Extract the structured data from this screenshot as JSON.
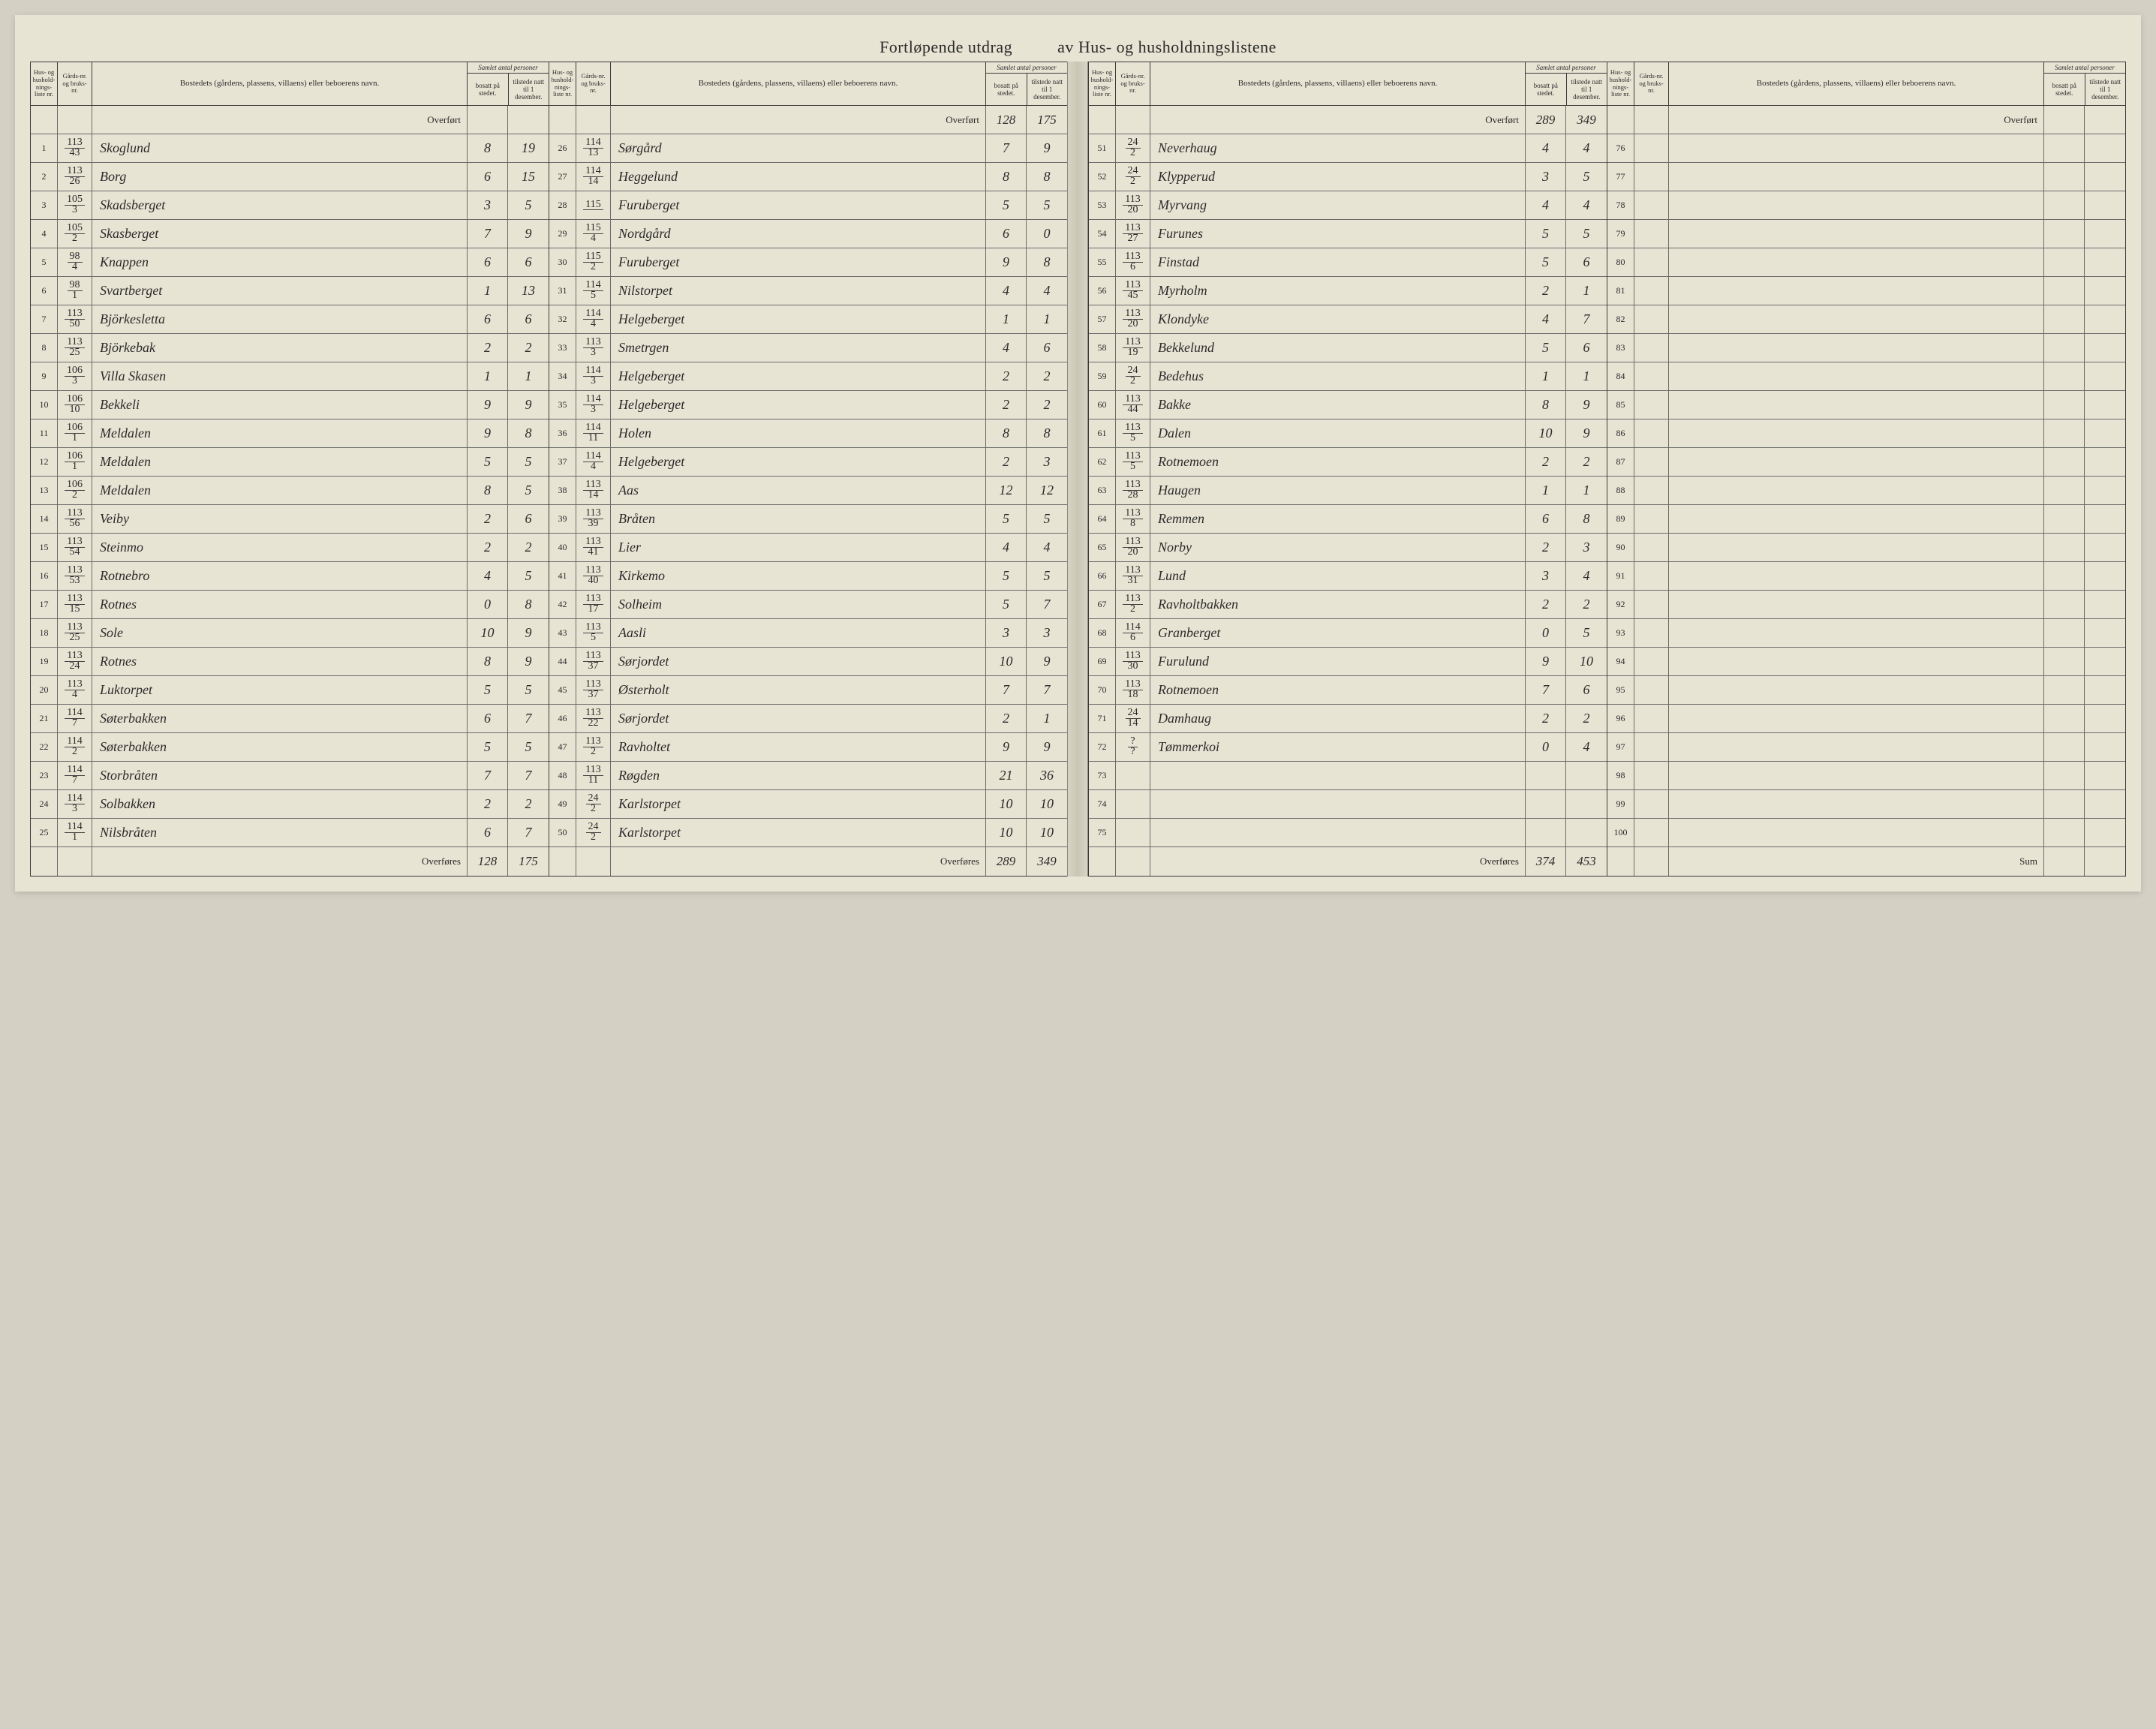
{
  "title_left": "Fortløpende utdrag",
  "title_right": "av Hus- og husholdningslistene",
  "head": {
    "nr": "Hus- og hushold-nings-liste nr.",
    "gnr": "Gårds-nr. og bruks-nr.",
    "bosted": "Bostedets (gårdens, plassens, villaens) eller beboerens navn.",
    "samlet": "Samlet antal personer",
    "bosatt": "bosatt på stedet.",
    "tilstede": "tilstede natt til 1 desember."
  },
  "overfort_label": "Overført",
  "overfores_label": "Overføres",
  "sum_label": "Sum",
  "panels": [
    {
      "overfort": {
        "bosatt": "",
        "tilstede": ""
      },
      "rows": [
        {
          "nr": "1",
          "g": "113",
          "b": "43",
          "navn": "Skoglund",
          "bo": "8",
          "ti": "19"
        },
        {
          "nr": "2",
          "g": "113",
          "b": "26",
          "navn": "Borg",
          "bo": "6",
          "ti": "15"
        },
        {
          "nr": "3",
          "g": "105",
          "b": "3",
          "navn": "Skadsberget",
          "bo": "3",
          "ti": "5"
        },
        {
          "nr": "4",
          "g": "105",
          "b": "2",
          "navn": "Skasberget",
          "bo": "7",
          "ti": "9"
        },
        {
          "nr": "5",
          "g": "98",
          "b": "4",
          "navn": "Knappen",
          "bo": "6",
          "ti": "6"
        },
        {
          "nr": "6",
          "g": "98",
          "b": "1",
          "navn": "Svartberget",
          "bo": "1",
          "ti": "13"
        },
        {
          "nr": "7",
          "g": "113",
          "b": "50",
          "navn": "Björkesletta",
          "bo": "6",
          "ti": "6"
        },
        {
          "nr": "8",
          "g": "113",
          "b": "25",
          "navn": "Björkebak",
          "bo": "2",
          "ti": "2"
        },
        {
          "nr": "9",
          "g": "106",
          "b": "3",
          "navn": "Villa Skasen",
          "bo": "1",
          "ti": "1"
        },
        {
          "nr": "10",
          "g": "106",
          "b": "10",
          "navn": "Bekkeli",
          "bo": "9",
          "ti": "9"
        },
        {
          "nr": "11",
          "g": "106",
          "b": "1",
          "navn": "Meldalen",
          "bo": "9",
          "ti": "8"
        },
        {
          "nr": "12",
          "g": "106",
          "b": "1",
          "navn": "Meldalen",
          "bo": "5",
          "ti": "5"
        },
        {
          "nr": "13",
          "g": "106",
          "b": "2",
          "navn": "Meldalen",
          "bo": "8",
          "ti": "5"
        },
        {
          "nr": "14",
          "g": "113",
          "b": "56",
          "navn": "Veiby",
          "bo": "2",
          "ti": "6"
        },
        {
          "nr": "15",
          "g": "113",
          "b": "54",
          "navn": "Steinmo",
          "bo": "2",
          "ti": "2"
        },
        {
          "nr": "16",
          "g": "113",
          "b": "53",
          "navn": "Rotnebro",
          "bo": "4",
          "ti": "5"
        },
        {
          "nr": "17",
          "g": "113",
          "b": "15",
          "navn": "Rotnes",
          "bo": "0",
          "ti": "8"
        },
        {
          "nr": "18",
          "g": "113",
          "b": "25",
          "navn": "Sole",
          "bo": "10",
          "ti": "9"
        },
        {
          "nr": "19",
          "g": "113",
          "b": "24",
          "navn": "Rotnes",
          "bo": "8",
          "ti": "9"
        },
        {
          "nr": "20",
          "g": "113",
          "b": "4",
          "navn": "Luktorpet",
          "bo": "5",
          "ti": "5"
        },
        {
          "nr": "21",
          "g": "114",
          "b": "7",
          "navn": "Søterbakken",
          "bo": "6",
          "ti": "7"
        },
        {
          "nr": "22",
          "g": "114",
          "b": "2",
          "navn": "Søterbakken",
          "bo": "5",
          "ti": "5"
        },
        {
          "nr": "23",
          "g": "114",
          "b": "7",
          "navn": "Storbråten",
          "bo": "7",
          "ti": "7"
        },
        {
          "nr": "24",
          "g": "114",
          "b": "3",
          "navn": "Solbakken",
          "bo": "2",
          "ti": "2"
        },
        {
          "nr": "25",
          "g": "114",
          "b": "1",
          "navn": "Nilsbråten",
          "bo": "6",
          "ti": "7"
        }
      ],
      "overfores": {
        "bosatt": "128",
        "tilstede": "175"
      }
    },
    {
      "overfort": {
        "bosatt": "128",
        "tilstede": "175"
      },
      "rows": [
        {
          "nr": "26",
          "g": "114",
          "b": "13",
          "navn": "Sørgård",
          "bo": "7",
          "ti": "9"
        },
        {
          "nr": "27",
          "g": "114",
          "b": "14",
          "navn": "Heggelund",
          "bo": "8",
          "ti": "8"
        },
        {
          "nr": "28",
          "g": "115",
          "b": "",
          "navn": "Furuberget",
          "bo": "5",
          "ti": "5"
        },
        {
          "nr": "29",
          "g": "115",
          "b": "4",
          "navn": "Nordgård",
          "bo": "6",
          "ti": "0"
        },
        {
          "nr": "30",
          "g": "115",
          "b": "2",
          "navn": "Furuberget",
          "bo": "9",
          "ti": "8"
        },
        {
          "nr": "31",
          "g": "114",
          "b": "5",
          "navn": "Nilstorpet",
          "bo": "4",
          "ti": "4"
        },
        {
          "nr": "32",
          "g": "114",
          "b": "4",
          "navn": "Helgeberget",
          "bo": "1",
          "ti": "1"
        },
        {
          "nr": "33",
          "g": "113",
          "b": "3",
          "navn": "Smetrgen",
          "bo": "4",
          "ti": "6"
        },
        {
          "nr": "34",
          "g": "114",
          "b": "3",
          "navn": "Helgeberget",
          "bo": "2",
          "ti": "2"
        },
        {
          "nr": "35",
          "g": "114",
          "b": "3",
          "navn": "Helgeberget",
          "bo": "2",
          "ti": "2"
        },
        {
          "nr": "36",
          "g": "114",
          "b": "11",
          "navn": "Holen",
          "bo": "8",
          "ti": "8"
        },
        {
          "nr": "37",
          "g": "114",
          "b": "4",
          "navn": "Helgeberget",
          "bo": "2",
          "ti": "3"
        },
        {
          "nr": "38",
          "g": "113",
          "b": "14",
          "navn": "Aas",
          "bo": "12",
          "ti": "12"
        },
        {
          "nr": "39",
          "g": "113",
          "b": "39",
          "navn": "Bråten",
          "bo": "5",
          "ti": "5"
        },
        {
          "nr": "40",
          "g": "113",
          "b": "41",
          "navn": "Lier",
          "bo": "4",
          "ti": "4"
        },
        {
          "nr": "41",
          "g": "113",
          "b": "40",
          "navn": "Kirkemo",
          "bo": "5",
          "ti": "5"
        },
        {
          "nr": "42",
          "g": "113",
          "b": "17",
          "navn": "Solheim",
          "bo": "5",
          "ti": "7"
        },
        {
          "nr": "43",
          "g": "113",
          "b": "5",
          "navn": "Aasli",
          "bo": "3",
          "ti": "3"
        },
        {
          "nr": "44",
          "g": "113",
          "b": "37",
          "navn": "Sørjordet",
          "bo": "10",
          "ti": "9"
        },
        {
          "nr": "45",
          "g": "113",
          "b": "37",
          "navn": "Østerholt",
          "bo": "7",
          "ti": "7"
        },
        {
          "nr": "46",
          "g": "113",
          "b": "22",
          "navn": "Sørjordet",
          "bo": "2",
          "ti": "1"
        },
        {
          "nr": "47",
          "g": "113",
          "b": "2",
          "navn": "Ravholtet",
          "bo": "9",
          "ti": "9"
        },
        {
          "nr": "48",
          "g": "113",
          "b": "11",
          "navn": "Røgden",
          "bo": "21",
          "ti": "36"
        },
        {
          "nr": "49",
          "g": "24",
          "b": "2",
          "navn": "Karlstorpet",
          "bo": "10",
          "ti": "10"
        },
        {
          "nr": "50",
          "g": "24",
          "b": "2",
          "navn": "Karlstorpet",
          "bo": "10",
          "ti": "10"
        }
      ],
      "overfores": {
        "bosatt": "289",
        "tilstede": "349"
      }
    },
    {
      "overfort": {
        "bosatt": "289",
        "tilstede": "349"
      },
      "rows": [
        {
          "nr": "51",
          "g": "24",
          "b": "2",
          "navn": "Neverhaug",
          "bo": "4",
          "ti": "4"
        },
        {
          "nr": "52",
          "g": "24",
          "b": "2",
          "navn": "Klypperud",
          "bo": "3",
          "ti": "5"
        },
        {
          "nr": "53",
          "g": "113",
          "b": "20",
          "navn": "Myrvang",
          "bo": "4",
          "ti": "4"
        },
        {
          "nr": "54",
          "g": "113",
          "b": "27",
          "navn": "Furunes",
          "bo": "5",
          "ti": "5"
        },
        {
          "nr": "55",
          "g": "113",
          "b": "6",
          "navn": "Finstad",
          "bo": "5",
          "ti": "6"
        },
        {
          "nr": "56",
          "g": "113",
          "b": "45",
          "navn": "Myrholm",
          "bo": "2",
          "ti": "1"
        },
        {
          "nr": "57",
          "g": "113",
          "b": "20",
          "navn": "Klondyke",
          "bo": "4",
          "ti": "7"
        },
        {
          "nr": "58",
          "g": "113",
          "b": "19",
          "navn": "Bekkelund",
          "bo": "5",
          "ti": "6"
        },
        {
          "nr": "59",
          "g": "24",
          "b": "2",
          "navn": "Bedehus",
          "bo": "1",
          "ti": "1"
        },
        {
          "nr": "60",
          "g": "113",
          "b": "44",
          "navn": "Bakke",
          "bo": "8",
          "ti": "9"
        },
        {
          "nr": "61",
          "g": "113",
          "b": "5",
          "navn": "Dalen",
          "bo": "10",
          "ti": "9"
        },
        {
          "nr": "62",
          "g": "113",
          "b": "5",
          "navn": "Rotnemoen",
          "bo": "2",
          "ti": "2"
        },
        {
          "nr": "63",
          "g": "113",
          "b": "28",
          "navn": "Haugen",
          "bo": "1",
          "ti": "1"
        },
        {
          "nr": "64",
          "g": "113",
          "b": "8",
          "navn": "Remmen",
          "bo": "6",
          "ti": "8"
        },
        {
          "nr": "65",
          "g": "113",
          "b": "20",
          "navn": "Norby",
          "bo": "2",
          "ti": "3"
        },
        {
          "nr": "66",
          "g": "113",
          "b": "31",
          "navn": "Lund",
          "bo": "3",
          "ti": "4"
        },
        {
          "nr": "67",
          "g": "113",
          "b": "2",
          "navn": "Ravholtbakken",
          "bo": "2",
          "ti": "2"
        },
        {
          "nr": "68",
          "g": "114",
          "b": "6",
          "navn": "Granberget",
          "bo": "0",
          "ti": "5"
        },
        {
          "nr": "69",
          "g": "113",
          "b": "30",
          "navn": "Furulund",
          "bo": "9",
          "ti": "10"
        },
        {
          "nr": "70",
          "g": "113",
          "b": "18",
          "navn": "Rotnemoen",
          "bo": "7",
          "ti": "6"
        },
        {
          "nr": "71",
          "g": "24",
          "b": "14",
          "navn": "Damhaug",
          "bo": "2",
          "ti": "2"
        },
        {
          "nr": "72",
          "g": "?",
          "b": "?",
          "navn": "Tømmerkoi",
          "bo": "0",
          "ti": "4"
        },
        {
          "nr": "73",
          "g": "",
          "b": "",
          "navn": "",
          "bo": "",
          "ti": ""
        },
        {
          "nr": "74",
          "g": "",
          "b": "",
          "navn": "",
          "bo": "",
          "ti": ""
        },
        {
          "nr": "75",
          "g": "",
          "b": "",
          "navn": "",
          "bo": "",
          "ti": ""
        }
      ],
      "overfores": {
        "bosatt": "374",
        "tilstede": "453"
      }
    },
    {
      "overfort": {
        "bosatt": "",
        "tilstede": ""
      },
      "rows": [
        {
          "nr": "76",
          "g": "",
          "b": "",
          "navn": "",
          "bo": "",
          "ti": ""
        },
        {
          "nr": "77",
          "g": "",
          "b": "",
          "navn": "",
          "bo": "",
          "ti": ""
        },
        {
          "nr": "78",
          "g": "",
          "b": "",
          "navn": "",
          "bo": "",
          "ti": ""
        },
        {
          "nr": "79",
          "g": "",
          "b": "",
          "navn": "",
          "bo": "",
          "ti": ""
        },
        {
          "nr": "80",
          "g": "",
          "b": "",
          "navn": "",
          "bo": "",
          "ti": ""
        },
        {
          "nr": "81",
          "g": "",
          "b": "",
          "navn": "",
          "bo": "",
          "ti": ""
        },
        {
          "nr": "82",
          "g": "",
          "b": "",
          "navn": "",
          "bo": "",
          "ti": ""
        },
        {
          "nr": "83",
          "g": "",
          "b": "",
          "navn": "",
          "bo": "",
          "ti": ""
        },
        {
          "nr": "84",
          "g": "",
          "b": "",
          "navn": "",
          "bo": "",
          "ti": ""
        },
        {
          "nr": "85",
          "g": "",
          "b": "",
          "navn": "",
          "bo": "",
          "ti": ""
        },
        {
          "nr": "86",
          "g": "",
          "b": "",
          "navn": "",
          "bo": "",
          "ti": ""
        },
        {
          "nr": "87",
          "g": "",
          "b": "",
          "navn": "",
          "bo": "",
          "ti": ""
        },
        {
          "nr": "88",
          "g": "",
          "b": "",
          "navn": "",
          "bo": "",
          "ti": ""
        },
        {
          "nr": "89",
          "g": "",
          "b": "",
          "navn": "",
          "bo": "",
          "ti": ""
        },
        {
          "nr": "90",
          "g": "",
          "b": "",
          "navn": "",
          "bo": "",
          "ti": ""
        },
        {
          "nr": "91",
          "g": "",
          "b": "",
          "navn": "",
          "bo": "",
          "ti": ""
        },
        {
          "nr": "92",
          "g": "",
          "b": "",
          "navn": "",
          "bo": "",
          "ti": ""
        },
        {
          "nr": "93",
          "g": "",
          "b": "",
          "navn": "",
          "bo": "",
          "ti": ""
        },
        {
          "nr": "94",
          "g": "",
          "b": "",
          "navn": "",
          "bo": "",
          "ti": ""
        },
        {
          "nr": "95",
          "g": "",
          "b": "",
          "navn": "",
          "bo": "",
          "ti": ""
        },
        {
          "nr": "96",
          "g": "",
          "b": "",
          "navn": "",
          "bo": "",
          "ti": ""
        },
        {
          "nr": "97",
          "g": "",
          "b": "",
          "navn": "",
          "bo": "",
          "ti": ""
        },
        {
          "nr": "98",
          "g": "",
          "b": "",
          "navn": "",
          "bo": "",
          "ti": ""
        },
        {
          "nr": "99",
          "g": "",
          "b": "",
          "navn": "",
          "bo": "",
          "ti": ""
        },
        {
          "nr": "100",
          "g": "",
          "b": "",
          "navn": "",
          "bo": "",
          "ti": ""
        }
      ],
      "overfores": {
        "bosatt": "",
        "tilstede": ""
      },
      "sum": true
    }
  ]
}
